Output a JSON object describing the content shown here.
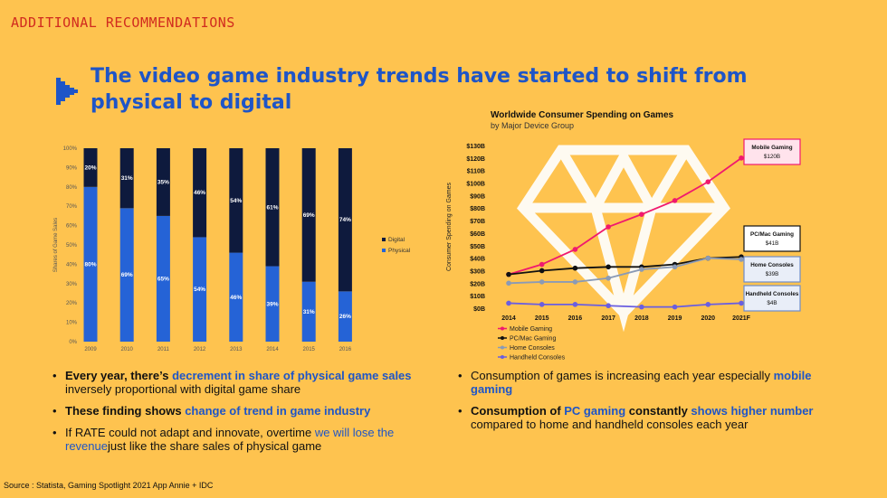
{
  "section_header": "ADDITIONAL RECOMMENDATIONS",
  "title": {
    "line1": "The video game industry trends have started to shift from",
    "line2": "physical to digital"
  },
  "colors": {
    "background": "#FEC34F",
    "header_red": "#D12B1F",
    "title_blue": "#1E55C7",
    "digital": "#0E1A3D",
    "physical": "#2563D6",
    "mobile": "#F0196E",
    "pc": "#111111",
    "home": "#8A9AB6",
    "handheld": "#6A5EE0"
  },
  "chart_data": [
    {
      "type": "bar",
      "stacked": true,
      "title": "",
      "xlabel": "",
      "ylabel": "Shares of Game Sales",
      "categories": [
        "2009",
        "2010",
        "2011",
        "2012",
        "2013",
        "2014",
        "2015",
        "2016"
      ],
      "series": [
        {
          "name": "Physical",
          "values": [
            80,
            69,
            65,
            54,
            46,
            39,
            31,
            26
          ]
        },
        {
          "name": "Digital",
          "values": [
            20,
            31,
            35,
            46,
            54,
            61,
            69,
            74
          ]
        }
      ],
      "legend": [
        "Digital",
        "Physical"
      ],
      "legend_position": "right",
      "yticks": [
        "0%",
        "10%",
        "20%",
        "30%",
        "40%",
        "50%",
        "60%",
        "70%",
        "80%",
        "90%",
        "100%"
      ],
      "ylim": [
        0,
        100
      ]
    },
    {
      "type": "line",
      "title": "Worldwide Consumer Spending on Games",
      "subtitle": "by Major Device Group",
      "xlabel": "",
      "ylabel": "Consumer Spending on Games",
      "categories": [
        "2014",
        "2015",
        "2016",
        "2017",
        "2018",
        "2019",
        "2020",
        "2021F"
      ],
      "yticks": [
        "$0B",
        "$10B",
        "$20B",
        "$30B",
        "$40B",
        "$50B",
        "$60B",
        "$70B",
        "$80B",
        "$90B",
        "$100B",
        "$110B",
        "$120B",
        "$130B"
      ],
      "ylim": [
        0,
        130
      ],
      "series": [
        {
          "name": "Mobile Gaming",
          "values": [
            27,
            35,
            47,
            65,
            75,
            86,
            101,
            120
          ]
        },
        {
          "name": "PC/Mac Gaming",
          "values": [
            27,
            30,
            32,
            33,
            33,
            35,
            40,
            41
          ]
        },
        {
          "name": "Home Consoles",
          "values": [
            20,
            21,
            21,
            24,
            31,
            33,
            40,
            39
          ]
        },
        {
          "name": "Handheld Consoles",
          "values": [
            4,
            3,
            3,
            2,
            1,
            1,
            3,
            4
          ]
        }
      ],
      "callouts": [
        {
          "label": "Mobile Gaming",
          "value": "$120B"
        },
        {
          "label": "PC/Mac Gaming",
          "value": "$41B"
        },
        {
          "label": "Home Consoles",
          "value": "$39B"
        },
        {
          "label": "Handheld Consoles",
          "value": "$4B"
        }
      ],
      "legend_position": "bottom-left"
    }
  ],
  "bullets_left": [
    {
      "plain": "",
      "bold": "Every year, there’s ",
      "highlight": "decrement in share of physical game sales",
      "rest": " inversely proportional with digital game share"
    },
    {
      "plain": "",
      "bold": "These finding shows ",
      "highlight": "change of trend in game industry",
      "rest": ""
    },
    {
      "plain": "If RATE could not adapt and innovate, overtime ",
      "bold": "",
      "highlight": "we will lose the revenue",
      "rest": "just like the share sales of physical game"
    }
  ],
  "bullets_right": [
    {
      "plain": "Consumption of games is increasing each year especially ",
      "highlight": "mobile gaming"
    },
    {
      "bold1": "Consumption of ",
      "highlight1": "PC gaming",
      "bold2": " constantly ",
      "highlight2": "shows higher number",
      "rest": " compared to home and handheld consoles each year"
    }
  ],
  "source": "Source : Statista, Gaming Spotlight 2021 App Annie + IDC"
}
